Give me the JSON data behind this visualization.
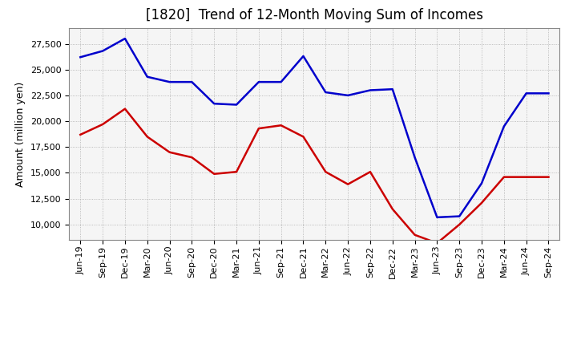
{
  "title": "[1820]  Trend of 12-Month Moving Sum of Incomes",
  "ylabel": "Amount (million yen)",
  "x_labels": [
    "Jun-19",
    "Sep-19",
    "Dec-19",
    "Mar-20",
    "Jun-20",
    "Sep-20",
    "Dec-20",
    "Mar-21",
    "Jun-21",
    "Sep-21",
    "Dec-21",
    "Mar-22",
    "Jun-22",
    "Sep-22",
    "Dec-22",
    "Mar-23",
    "Jun-23",
    "Sep-23",
    "Dec-23",
    "Mar-24",
    "Jun-24",
    "Sep-24"
  ],
  "ordinary_income": [
    26200,
    26800,
    28000,
    24300,
    23800,
    23800,
    21700,
    21600,
    23800,
    23800,
    26300,
    22800,
    22500,
    23000,
    23100,
    16500,
    10700,
    10800,
    14000,
    19500,
    22700,
    22700
  ],
  "net_income": [
    18700,
    19700,
    21200,
    18500,
    17000,
    16500,
    14900,
    15100,
    19300,
    19600,
    18500,
    15100,
    13900,
    15100,
    11500,
    9000,
    8200,
    10000,
    12100,
    14600,
    14600,
    14600
  ],
  "ordinary_color": "#0000cc",
  "net_color": "#cc0000",
  "background_color": "#ffffff",
  "plot_bg_color": "#f5f5f5",
  "grid_color": "#999999",
  "ylim_min": 8500,
  "ylim_max": 29000,
  "yticks": [
    10000,
    12500,
    15000,
    17500,
    20000,
    22500,
    25000,
    27500
  ],
  "title_fontsize": 12,
  "axis_fontsize": 9,
  "tick_fontsize": 8,
  "line_width": 1.8
}
